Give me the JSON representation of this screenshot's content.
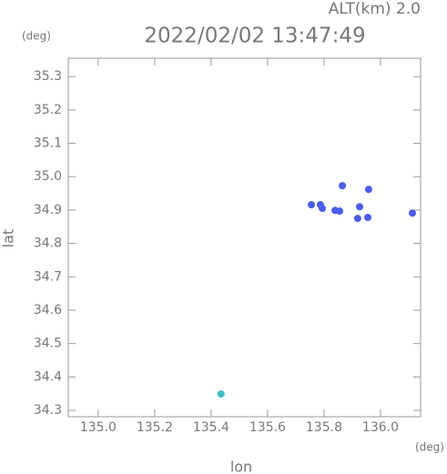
{
  "chart_data": {
    "type": "scatter",
    "title": "2022/02/02 13:47:49",
    "subtitle": "ALT(km)  2.0",
    "y_unit": "(deg)",
    "x_unit": "(deg)",
    "x_label": "lon",
    "y_label": "lat",
    "x": [
      135.755,
      135.787,
      135.794,
      135.839,
      135.855,
      135.865,
      135.926,
      135.919,
      135.958,
      135.955,
      136.113,
      135.435
    ],
    "values": [
      34.916,
      34.916,
      34.905,
      34.899,
      34.897,
      34.973,
      34.91,
      34.875,
      34.962,
      34.878,
      34.891,
      34.349
    ],
    "colors": [
      "#4a5cf2",
      "#4a5cf2",
      "#4a5cf2",
      "#4a5cf2",
      "#4a5cf2",
      "#4a5cf2",
      "#4a5cf2",
      "#4a5cf2",
      "#4a5cf2",
      "#4a5cf2",
      "#4a5cf2",
      "#3cc0c8"
    ],
    "xlim": [
      134.894,
      136.142
    ],
    "ylim": [
      34.281,
      35.355
    ],
    "xticks": [
      {
        "value": 135.0,
        "label": "135.0"
      },
      135.2,
      135.4,
      135.6,
      135.8,
      {
        "value": 136.0,
        "label": "136.0"
      }
    ],
    "yticks": [
      34.3,
      34.4,
      34.5,
      34.6,
      34.7,
      34.8,
      34.9,
      {
        "value": 35.0,
        "label": "35.0"
      },
      35.1,
      35.2,
      35.3
    ],
    "grid": false
  }
}
